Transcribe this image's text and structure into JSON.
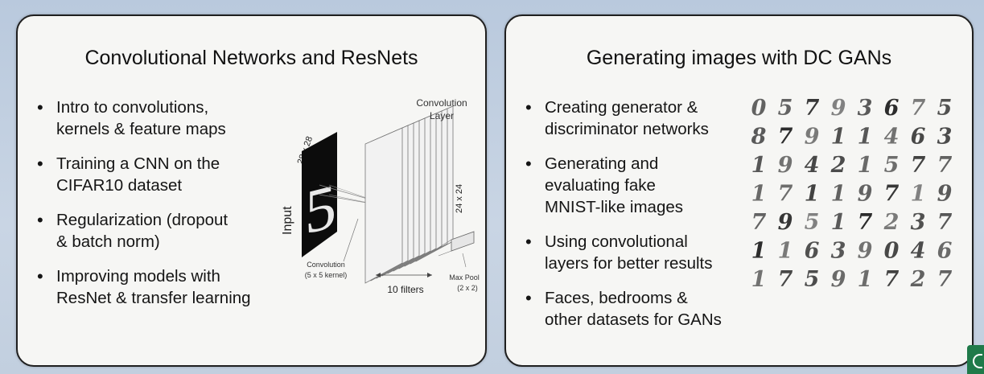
{
  "left_slide": {
    "title": "Convolutional Networks and ResNets",
    "bullets": [
      [
        "Intro to convolutions,",
        "kernels & feature maps"
      ],
      [
        "Training a CNN on the",
        "CIFAR10 dataset"
      ],
      [
        "Regularization (dropout",
        "& batch norm)"
      ],
      [
        "Improving models with",
        "ResNet & transfer learning"
      ]
    ],
    "diagram": {
      "input_size": "28 x 28",
      "input_label": "Input",
      "input_digit": "5",
      "conv_layer_label_line1": "Convolution",
      "conv_layer_label_line2": "Layer",
      "feature_size": "24 x 24",
      "conv_label_line1": "Convolution",
      "conv_label_line2": "(5 x 5 kernel)",
      "filters_label": "10 filters",
      "pool_label_line1": "Max Pool",
      "pool_label_line2": "(2 x 2)"
    }
  },
  "right_slide": {
    "title": "Generating images with DC GANs",
    "bullets": [
      [
        "Creating generator &",
        "discriminator networks"
      ],
      [
        "Generating and",
        "evaluating fake",
        "MNIST-like images"
      ],
      [
        "Using convolutional",
        "layers for better results"
      ],
      [
        "Faces, bedrooms &",
        "other datasets for GANs"
      ]
    ],
    "mnist_samples": [
      [
        "0",
        "5",
        "7",
        "9",
        "3",
        "6",
        "7",
        "5"
      ],
      [
        "8",
        "7",
        "9",
        "1",
        "1",
        "4",
        "6",
        "3"
      ],
      [
        "1",
        "9",
        "4",
        "2",
        "1",
        "5",
        "7",
        "7"
      ],
      [
        "1",
        "7",
        "1",
        "1",
        "9",
        "7",
        "1",
        "9"
      ],
      [
        "7",
        "9",
        "5",
        "1",
        "7",
        "2",
        "3",
        "7"
      ],
      [
        "1",
        "1",
        "6",
        "3",
        "9",
        "0",
        "4",
        "6"
      ],
      [
        "1",
        "7",
        "5",
        "9",
        "1",
        "7",
        "2",
        "7"
      ]
    ]
  },
  "colors": {
    "card_bg": "#f6f6f4",
    "card_border": "#1f1f1f",
    "background": "#c2cfdf",
    "badge": "#1f7a49"
  }
}
